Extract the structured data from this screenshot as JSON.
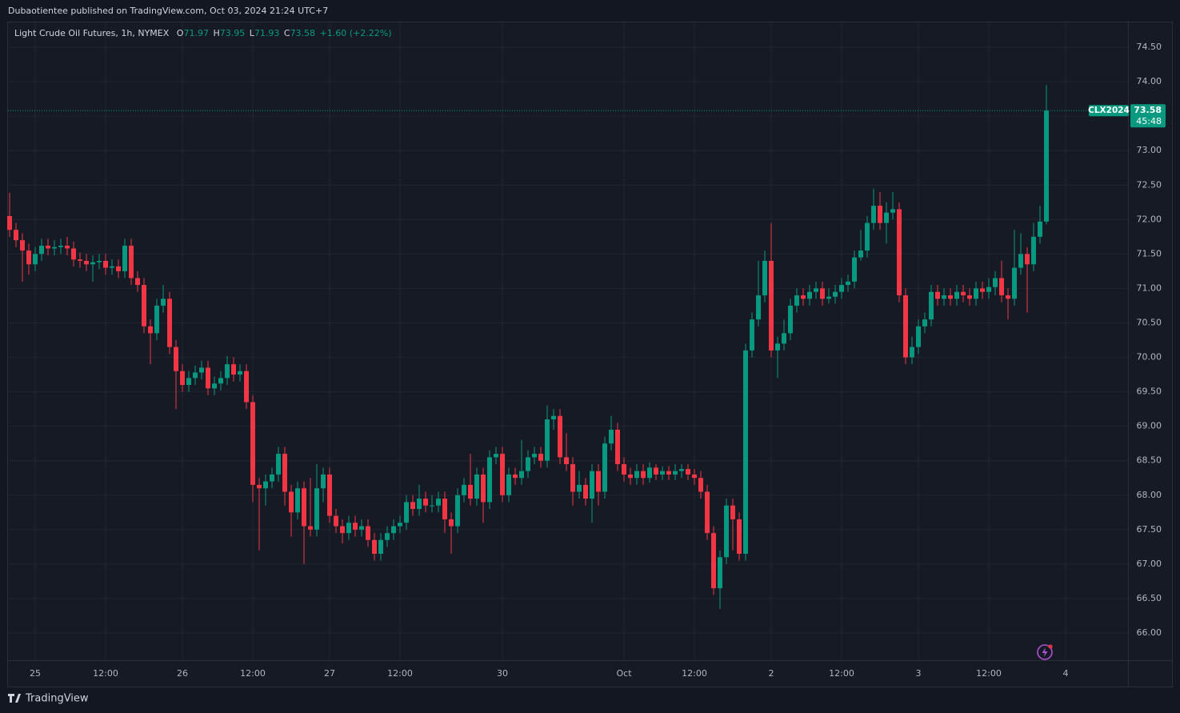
{
  "chart_data": {
    "type": "candlestick",
    "published": "Dubaotientee published on TradingView.com, Oct 03, 2024 21:24 UTC+7",
    "title": "Light Crude Oil Futures, 1h, NYMEX",
    "ohlc_labels": [
      "O",
      "H",
      "L",
      "C"
    ],
    "change": {
      "value": 1.6,
      "label": "+1.60"
    },
    "change_pct": {
      "value": 2.22,
      "label": "(+2.22%)"
    },
    "symbol": "CLX2024",
    "countdown": "45:48",
    "brand": "TradingView",
    "up_color": "#089981",
    "down_color": "#f23645",
    "grid": true,
    "ylim": [
      65.6,
      74.86
    ],
    "yticks": [
      {
        "value": 66,
        "label": "66.00"
      },
      {
        "value": 66.5,
        "label": "66.50"
      },
      {
        "value": 67,
        "label": "67.00"
      },
      {
        "value": 67.5,
        "label": "67.50"
      },
      {
        "value": 68,
        "label": "68.00"
      },
      {
        "value": 68.5,
        "label": "68.50"
      },
      {
        "value": 69,
        "label": "69.00"
      },
      {
        "value": 69.5,
        "label": "69.50"
      },
      {
        "value": 70,
        "label": "70.00"
      },
      {
        "value": 70.5,
        "label": "70.50"
      },
      {
        "value": 71,
        "label": "71.00"
      },
      {
        "value": 71.5,
        "label": "71.50"
      },
      {
        "value": 72,
        "label": "72.00"
      },
      {
        "value": 72.5,
        "label": "72.50"
      },
      {
        "value": 73,
        "label": "73.00"
      },
      {
        "value": 73.5,
        "label": "73.50"
      },
      {
        "value": 74,
        "label": "74.00"
      },
      {
        "value": 74.5,
        "label": "74.50"
      }
    ],
    "xlim": [
      -0.25,
      174.75
    ],
    "xticks": [
      {
        "value": 4,
        "label": "25"
      },
      {
        "value": 15,
        "label": "12:00"
      },
      {
        "value": 27,
        "label": "26"
      },
      {
        "value": 38,
        "label": "12:00"
      },
      {
        "value": 50,
        "label": "27"
      },
      {
        "value": 61,
        "label": "12:00"
      },
      {
        "value": 77,
        "label": "30"
      },
      {
        "value": 96,
        "label": "Oct"
      },
      {
        "value": 107,
        "label": "12:00"
      },
      {
        "value": 119,
        "label": "2"
      },
      {
        "value": 130,
        "label": "12:00"
      },
      {
        "value": 142,
        "label": "3"
      },
      {
        "value": 153,
        "label": "12:00"
      },
      {
        "value": 165,
        "label": "4"
      }
    ],
    "open": [
      72.05,
      71.85,
      71.7,
      71.55,
      71.35,
      71.5,
      71.62,
      71.58,
      71.6,
      71.62,
      71.58,
      71.42,
      71.4,
      71.35,
      71.38,
      71.4,
      71.3,
      71.32,
      71.25,
      71.62,
      71.15,
      71.05,
      70.45,
      70.35,
      70.75,
      70.85,
      70.15,
      69.8,
      69.6,
      69.7,
      69.78,
      69.85,
      69.55,
      69.62,
      69.7,
      69.9,
      69.75,
      69.8,
      69.35,
      68.15,
      68.1,
      68.2,
      68.3,
      68.6,
      68.05,
      67.75,
      68.1,
      67.55,
      67.5,
      68.1,
      68.3,
      67.7,
      67.55,
      67.45,
      67.6,
      67.5,
      67.55,
      67.35,
      67.15,
      67.35,
      67.45,
      67.55,
      67.6,
      67.9,
      67.8,
      67.95,
      67.85,
      67.85,
      67.95,
      67.65,
      67.55,
      68.0,
      68.15,
      67.95,
      68.3,
      67.9,
      68.55,
      68.6,
      68.0,
      68.3,
      68.25,
      68.35,
      68.55,
      68.6,
      68.5,
      69.1,
      69.15,
      68.55,
      68.45,
      68.05,
      68.15,
      67.95,
      68.35,
      68.05,
      68.75,
      68.95,
      68.45,
      68.3,
      68.25,
      68.35,
      68.25,
      68.4,
      68.3,
      68.35,
      68.3,
      68.35,
      68.38,
      68.3,
      68.25,
      68.05,
      67.45,
      66.65,
      67.1,
      67.85,
      67.65,
      67.15,
      70.1,
      70.55,
      70.9,
      71.4,
      70.1,
      70.2,
      70.35,
      70.75,
      70.9,
      70.85,
      70.95,
      71.0,
      70.85,
      70.88,
      70.95,
      71.05,
      71.1,
      71.45,
      71.55,
      71.95,
      72.2,
      71.95,
      72.1,
      72.15,
      70.9,
      70.0,
      70.15,
      70.45,
      70.55,
      70.95,
      70.85,
      70.9,
      70.85,
      70.95,
      70.9,
      70.85,
      71.0,
      70.95,
      71.02,
      71.15,
      70.9,
      70.85,
      71.3,
      71.5,
      71.35,
      71.75,
      71.97
    ],
    "high": [
      72.39,
      71.95,
      71.8,
      71.65,
      71.6,
      71.72,
      71.72,
      71.7,
      71.72,
      71.75,
      71.68,
      71.52,
      71.5,
      71.48,
      71.5,
      71.5,
      71.42,
      71.42,
      71.72,
      71.72,
      71.25,
      71.15,
      70.55,
      70.85,
      71.05,
      70.95,
      70.25,
      69.9,
      69.8,
      69.88,
      69.95,
      69.95,
      69.72,
      69.8,
      70.02,
      70.0,
      69.9,
      69.9,
      69.45,
      68.25,
      68.3,
      68.4,
      68.7,
      68.7,
      68.15,
      68.2,
      68.2,
      68.25,
      68.45,
      68.4,
      68.4,
      67.8,
      67.65,
      67.7,
      67.7,
      67.65,
      67.65,
      67.45,
      67.45,
      67.55,
      67.65,
      67.7,
      68.0,
      68.0,
      68.15,
      68.05,
      68.0,
      68.05,
      68.05,
      67.75,
      68.1,
      68.25,
      68.6,
      68.4,
      68.4,
      68.65,
      68.7,
      68.7,
      68.4,
      68.4,
      68.8,
      68.65,
      68.7,
      68.7,
      69.3,
      69.25,
      69.25,
      68.9,
      68.55,
      68.35,
      68.25,
      68.45,
      68.45,
      68.85,
      69.15,
      69.05,
      68.55,
      68.4,
      68.45,
      68.45,
      68.48,
      68.45,
      68.42,
      68.42,
      68.45,
      68.45,
      68.45,
      68.38,
      68.35,
      68.15,
      67.55,
      67.2,
      67.95,
      67.95,
      67.75,
      70.2,
      70.65,
      71.4,
      71.55,
      71.95,
      70.3,
      70.55,
      70.85,
      71.0,
      71.0,
      71.05,
      71.1,
      71.1,
      71.0,
      71.05,
      71.15,
      71.2,
      71.55,
      71.85,
      72.05,
      72.45,
      72.4,
      72.25,
      72.4,
      72.25,
      71.0,
      70.3,
      70.55,
      70.65,
      71.05,
      71.05,
      71.0,
      71.0,
      71.05,
      71.05,
      71.0,
      71.1,
      71.1,
      71.15,
      71.25,
      71.4,
      71.0,
      71.85,
      71.8,
      71.6,
      71.95,
      72.2,
      73.95
    ],
    "low": [
      71.75,
      71.6,
      71.1,
      71.2,
      71.25,
      71.4,
      71.48,
      71.48,
      71.5,
      71.48,
      71.32,
      71.3,
      71.25,
      71.1,
      71.28,
      71.2,
      71.2,
      71.15,
      71.15,
      71.05,
      70.95,
      70.35,
      69.9,
      70.25,
      70.65,
      70.05,
      69.25,
      69.5,
      69.5,
      69.6,
      69.68,
      69.45,
      69.45,
      69.52,
      69.6,
      69.65,
      69.65,
      69.25,
      67.9,
      67.2,
      67.85,
      68.1,
      68.2,
      67.85,
      67.4,
      67.65,
      67.0,
      67.4,
      67.4,
      67.9,
      67.6,
      67.45,
      67.3,
      67.35,
      67.4,
      67.4,
      67.25,
      67.05,
      67.05,
      67.25,
      67.35,
      67.45,
      67.5,
      67.7,
      67.7,
      67.75,
      67.75,
      67.75,
      67.45,
      67.15,
      67.45,
      67.9,
      67.85,
      67.85,
      67.6,
      67.8,
      68.45,
      67.9,
      67.9,
      68.15,
      68.15,
      68.25,
      68.45,
      68.4,
      68.4,
      68.95,
      68.45,
      68.35,
      67.85,
      67.95,
      67.85,
      67.6,
      67.85,
      67.95,
      68.65,
      68.35,
      68.2,
      68.15,
      68.15,
      68.15,
      68.18,
      68.22,
      68.22,
      68.22,
      68.22,
      68.25,
      68.22,
      68.15,
      67.95,
      67.35,
      66.55,
      66.35,
      67.0,
      67.2,
      67.05,
      67.05,
      70.0,
      70.45,
      70.8,
      70.0,
      69.7,
      70.1,
      70.25,
      70.65,
      70.75,
      70.75,
      70.85,
      70.75,
      70.78,
      70.78,
      70.85,
      70.95,
      71.0,
      71.4,
      71.45,
      71.85,
      71.85,
      71.65,
      72.0,
      70.8,
      69.9,
      69.9,
      70.05,
      70.35,
      70.45,
      70.75,
      70.75,
      70.75,
      70.75,
      70.8,
      70.75,
      70.75,
      70.85,
      70.85,
      70.9,
      70.8,
      70.55,
      70.75,
      71.2,
      70.65,
      71.25,
      71.65,
      71.93
    ],
    "close": [
      71.85,
      71.7,
      71.55,
      71.35,
      71.5,
      71.62,
      71.58,
      71.6,
      71.62,
      71.58,
      71.42,
      71.4,
      71.35,
      71.38,
      71.4,
      71.3,
      71.32,
      71.25,
      71.62,
      71.15,
      71.05,
      70.45,
      70.35,
      70.75,
      70.85,
      70.15,
      69.8,
      69.6,
      69.7,
      69.78,
      69.85,
      69.55,
      69.62,
      69.7,
      69.9,
      69.75,
      69.8,
      69.35,
      68.15,
      68.1,
      68.2,
      68.3,
      68.6,
      68.05,
      67.75,
      68.1,
      67.55,
      67.5,
      68.1,
      68.3,
      67.7,
      67.55,
      67.45,
      67.6,
      67.5,
      67.55,
      67.35,
      67.15,
      67.35,
      67.45,
      67.55,
      67.6,
      67.9,
      67.8,
      67.95,
      67.85,
      67.85,
      67.95,
      67.65,
      67.55,
      68.0,
      68.15,
      67.95,
      68.3,
      67.9,
      68.55,
      68.6,
      68.0,
      68.3,
      68.25,
      68.35,
      68.55,
      68.6,
      68.5,
      69.1,
      69.15,
      68.55,
      68.45,
      68.05,
      68.15,
      67.95,
      68.35,
      68.05,
      68.75,
      68.95,
      68.45,
      68.3,
      68.25,
      68.35,
      68.25,
      68.4,
      68.3,
      68.35,
      68.3,
      68.35,
      68.38,
      68.3,
      68.25,
      68.05,
      67.45,
      66.65,
      67.1,
      67.85,
      67.65,
      67.15,
      70.1,
      70.55,
      70.9,
      71.4,
      70.1,
      70.2,
      70.35,
      70.75,
      70.9,
      70.85,
      70.95,
      71.0,
      70.85,
      70.88,
      70.95,
      71.05,
      71.1,
      71.45,
      71.55,
      71.95,
      72.2,
      71.95,
      72.1,
      72.15,
      70.9,
      70.0,
      70.15,
      70.45,
      70.55,
      70.95,
      70.85,
      70.9,
      70.85,
      70.95,
      70.9,
      70.85,
      71.0,
      70.95,
      71.02,
      71.15,
      70.9,
      70.85,
      71.3,
      71.5,
      71.35,
      71.75,
      71.97,
      73.58
    ]
  }
}
